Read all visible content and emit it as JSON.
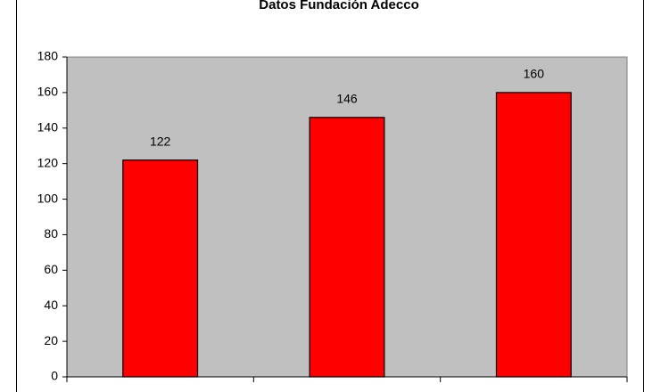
{
  "chart_data": {
    "type": "bar",
    "title": "Datos Fundación Adecco",
    "categories": [
      null,
      null,
      null
    ],
    "values": [
      122,
      146,
      160
    ],
    "color": "#ff0000",
    "ylim": [
      0,
      180
    ],
    "yticks": [
      0,
      20,
      40,
      60,
      80,
      100,
      120,
      140,
      160,
      180
    ],
    "grid": false
  }
}
